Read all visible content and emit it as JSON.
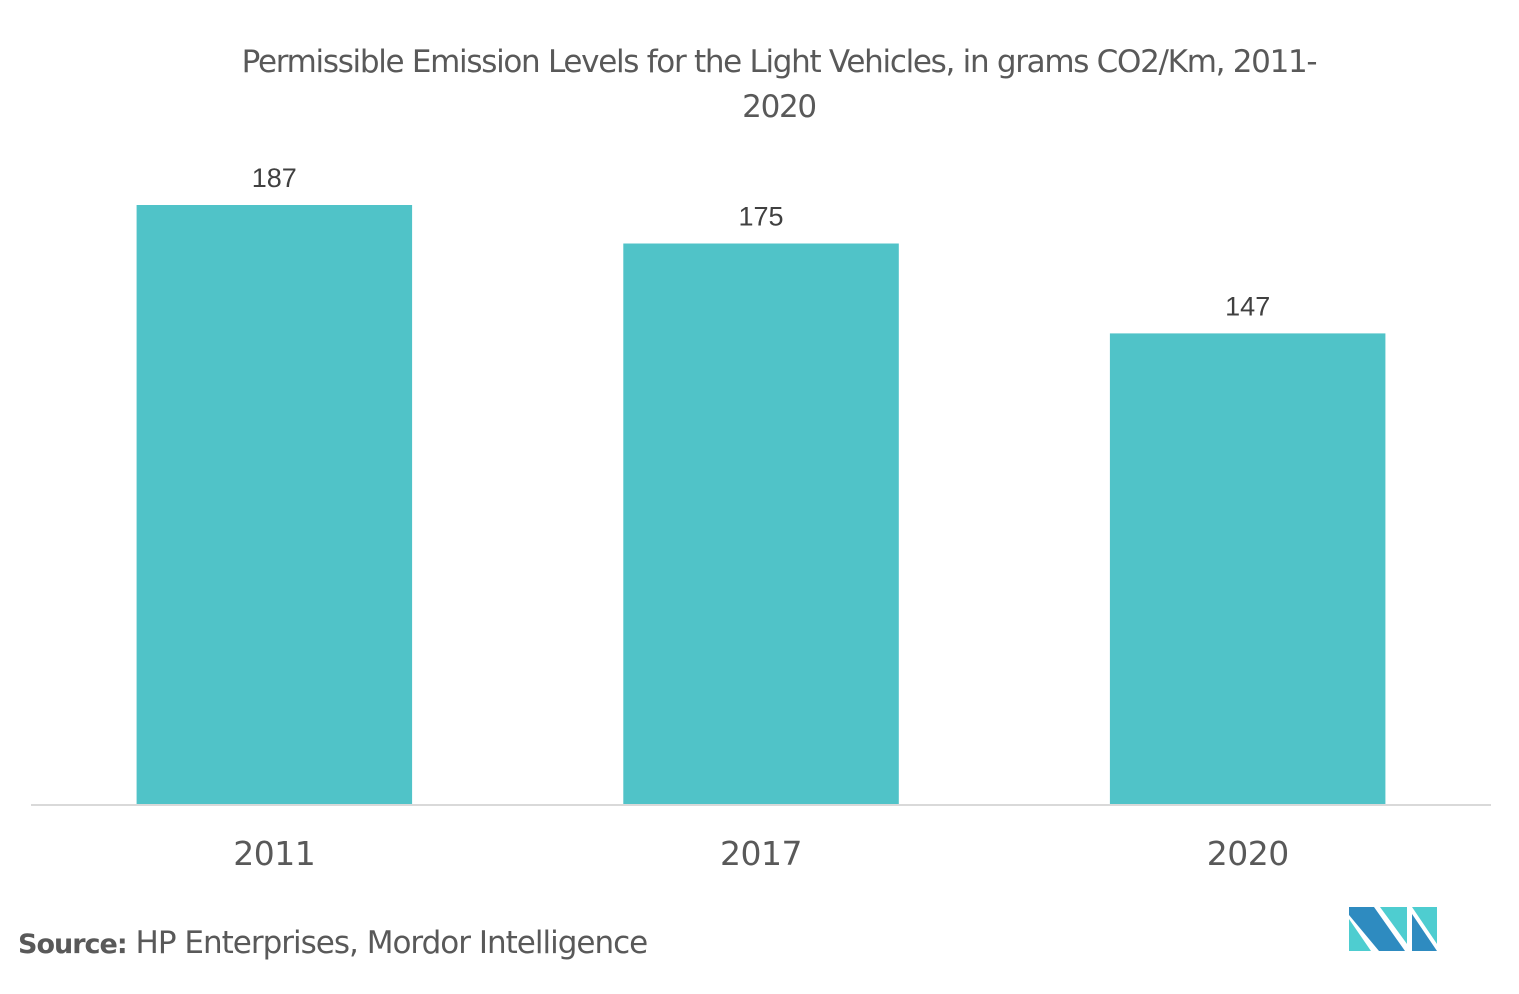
{
  "chart_data": {
    "type": "bar",
    "title": "Permissible Emission Levels for the Light Vehicles, in grams CO2/Km, 2011-2020",
    "title_lines": [
      "Permissible Emission Levels for the Light Vehicles, in grams CO2/Km, 2011-",
      "2020"
    ],
    "categories": [
      "2011",
      "2017",
      "2020"
    ],
    "values": [
      187,
      175,
      147
    ],
    "data_labels": [
      "187",
      "175",
      "147"
    ],
    "xlabel": "",
    "ylabel": "",
    "ylim": [
      0,
      250.9
    ],
    "grid": false,
    "legend": "none",
    "bar_color": "#50c3c8"
  },
  "source": {
    "label": "Source:",
    "text": "HP Enterprises, Mordor Intelligence"
  },
  "logo": {
    "name": "Mordor Intelligence logo",
    "colors": [
      "#2e8bc0",
      "#4ecdd0"
    ]
  }
}
